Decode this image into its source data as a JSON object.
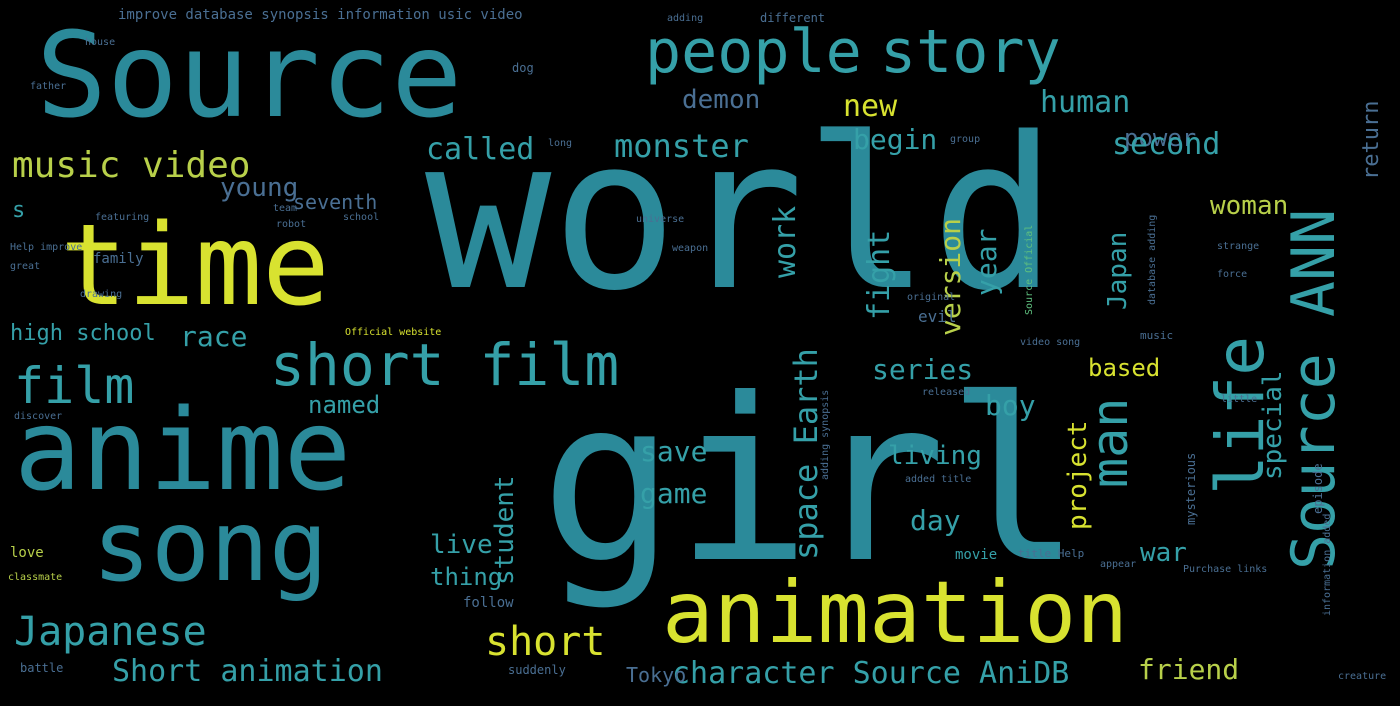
{
  "colors": {
    "background": "#000000",
    "teal": "#2b8a9a",
    "teal_light": "#35a0a8",
    "yellow": "#d8e230",
    "lime": "#b8d04a",
    "green": "#5fc07f",
    "steel": "#4a6f93"
  },
  "words": [
    {
      "text": "world",
      "color": "#2b8a9a",
      "orientation": "horizontal"
    },
    {
      "text": "girl",
      "color": "#2b8a9a",
      "orientation": "horizontal"
    },
    {
      "text": "Source",
      "color": "#2b8a9a",
      "orientation": "horizontal"
    },
    {
      "text": "time",
      "color": "#d8e230",
      "orientation": "horizontal"
    },
    {
      "text": "anime",
      "color": "#2b8a9a",
      "orientation": "horizontal"
    },
    {
      "text": "song",
      "color": "#2b8a9a",
      "orientation": "horizontal"
    },
    {
      "text": "animation",
      "color": "#d8e230",
      "orientation": "horizontal"
    },
    {
      "text": "people",
      "color": "#35a0a8",
      "orientation": "horizontal"
    },
    {
      "text": "story",
      "color": "#35a0a8",
      "orientation": "horizontal"
    },
    {
      "text": "Source ANN",
      "color": "#35a0a8",
      "orientation": "vertical"
    },
    {
      "text": "life",
      "color": "#35a0a8",
      "orientation": "vertical"
    },
    {
      "text": "man",
      "color": "#35a0a8",
      "orientation": "vertical"
    },
    {
      "text": "short film",
      "color": "#35a0a8",
      "orientation": "horizontal"
    },
    {
      "text": "film",
      "color": "#35a0a8",
      "orientation": "horizontal"
    },
    {
      "text": "music video",
      "color": "#b8d04a",
      "orientation": "horizontal"
    },
    {
      "text": "Japanese",
      "color": "#35a0a8",
      "orientation": "horizontal"
    },
    {
      "text": "short",
      "color": "#d8e230",
      "orientation": "horizontal"
    },
    {
      "text": "Short animation",
      "color": "#35a0a8",
      "orientation": "horizontal"
    },
    {
      "text": "character Source AniDB",
      "color": "#35a0a8",
      "orientation": "horizontal"
    },
    {
      "text": "friend",
      "color": "#b8d04a",
      "orientation": "horizontal"
    },
    {
      "text": "Tokyo",
      "color": "#4a6f93",
      "orientation": "horizontal"
    },
    {
      "text": "young",
      "color": "#4a6f93",
      "orientation": "horizontal"
    },
    {
      "text": "seventh",
      "color": "#4a6f93",
      "orientation": "horizontal"
    },
    {
      "text": "s",
      "color": "#35a0a8",
      "orientation": "horizontal"
    },
    {
      "text": "high school",
      "color": "#35a0a8",
      "orientation": "horizontal"
    },
    {
      "text": "race",
      "color": "#35a0a8",
      "orientation": "horizontal"
    },
    {
      "text": "named",
      "color": "#35a0a8",
      "orientation": "horizontal"
    },
    {
      "text": "series",
      "color": "#35a0a8",
      "orientation": "horizontal"
    },
    {
      "text": "boy",
      "color": "#35a0a8",
      "orientation": "horizontal"
    },
    {
      "text": "based",
      "color": "#d8e230",
      "orientation": "horizontal"
    },
    {
      "text": "living",
      "color": "#35a0a8",
      "orientation": "horizontal"
    },
    {
      "text": "save",
      "color": "#35a0a8",
      "orientation": "horizontal"
    },
    {
      "text": "game",
      "color": "#35a0a8",
      "orientation": "horizontal"
    },
    {
      "text": "day",
      "color": "#35a0a8",
      "orientation": "horizontal"
    },
    {
      "text": "live",
      "color": "#35a0a8",
      "orientation": "horizontal"
    },
    {
      "text": "thing",
      "color": "#35a0a8",
      "orientation": "horizontal"
    },
    {
      "text": "war",
      "color": "#35a0a8",
      "orientation": "horizontal"
    },
    {
      "text": "demon",
      "color": "#4a6f93",
      "orientation": "horizontal"
    },
    {
      "text": "new",
      "color": "#d8e230",
      "orientation": "horizontal"
    },
    {
      "text": "human",
      "color": "#35a0a8",
      "orientation": "horizontal"
    },
    {
      "text": "power",
      "color": "#4a6f93",
      "orientation": "horizontal"
    },
    {
      "text": "called",
      "color": "#35a0a8",
      "orientation": "horizontal"
    },
    {
      "text": "monster",
      "color": "#35a0a8",
      "orientation": "horizontal"
    },
    {
      "text": "begin",
      "color": "#35a0a8",
      "orientation": "horizontal"
    },
    {
      "text": "second",
      "color": "#35a0a8",
      "orientation": "horizontal"
    },
    {
      "text": "woman",
      "color": "#b8d04a",
      "orientation": "horizontal"
    },
    {
      "text": "return",
      "color": "#4a6f93",
      "orientation": "vertical"
    },
    {
      "text": "special",
      "color": "#35a0a8",
      "orientation": "vertical"
    },
    {
      "text": "project",
      "color": "#d8e230",
      "orientation": "vertical"
    },
    {
      "text": "Japan",
      "color": "#35a0a8",
      "orientation": "vertical"
    },
    {
      "text": "version",
      "color": "#b8d04a",
      "orientation": "vertical"
    },
    {
      "text": "year",
      "color": "#35a0a8",
      "orientation": "vertical"
    },
    {
      "text": "fight",
      "color": "#35a0a8",
      "orientation": "vertical"
    },
    {
      "text": "work",
      "color": "#35a0a8",
      "orientation": "vertical"
    },
    {
      "text": "space Earth",
      "color": "#35a0a8",
      "orientation": "vertical"
    },
    {
      "text": "student",
      "color": "#35a0a8",
      "orientation": "vertical"
    },
    {
      "text": "improve database synopsis information usic video",
      "color": "#4a6f93",
      "orientation": "horizontal"
    },
    {
      "text": "love",
      "color": "#b8d04a",
      "orientation": "horizontal"
    },
    {
      "text": "family",
      "color": "#4a6f93",
      "orientation": "horizontal"
    },
    {
      "text": "battle",
      "color": "#4a6f93",
      "orientation": "horizontal"
    },
    {
      "text": "suddenly",
      "color": "#4a6f93",
      "orientation": "horizontal"
    },
    {
      "text": "follow",
      "color": "#4a6f93",
      "orientation": "horizontal"
    },
    {
      "text": "movie",
      "color": "#35a0a8",
      "orientation": "horizontal"
    },
    {
      "text": "evil",
      "color": "#4a6f93",
      "orientation": "horizontal"
    },
    {
      "text": "music",
      "color": "#4a6f93",
      "orientation": "horizontal"
    },
    {
      "text": "dog",
      "color": "#4a6f93",
      "orientation": "horizontal"
    },
    {
      "text": "title Help",
      "color": "#4a6f93",
      "orientation": "horizontal"
    },
    {
      "text": "Help improve",
      "color": "#4a6f93",
      "orientation": "horizontal"
    },
    {
      "text": "added title",
      "color": "#4a6f93",
      "orientation": "horizontal"
    },
    {
      "text": "Official website",
      "color": "#d8e230",
      "orientation": "horizontal"
    },
    {
      "text": "video song",
      "color": "#4a6f93",
      "orientation": "horizontal"
    },
    {
      "text": "Purchase links",
      "color": "#4a6f93",
      "orientation": "horizontal"
    },
    {
      "text": "strange",
      "color": "#4a6f93",
      "orientation": "horizontal"
    },
    {
      "text": "released",
      "color": "#4a6f93",
      "orientation": "horizontal"
    },
    {
      "text": "different",
      "color": "#4a6f93",
      "orientation": "horizontal"
    },
    {
      "text": "database adding",
      "color": "#4a6f93",
      "orientation": "vertical"
    },
    {
      "text": "Source Official",
      "color": "#5fc07f",
      "orientation": "vertical"
    },
    {
      "text": "mysterious",
      "color": "#4a6f93",
      "orientation": "vertical"
    },
    {
      "text": "episode",
      "color": "#4a6f93",
      "orientation": "vertical"
    },
    {
      "text": "information added",
      "color": "#4a6f93",
      "orientation": "vertical"
    },
    {
      "text": "adding synopsis",
      "color": "#4a6f93",
      "orientation": "vertical"
    },
    {
      "text": "original",
      "color": "#4a6f93",
      "orientation": "horizontal"
    },
    {
      "text": "great",
      "color": "#4a6f93",
      "orientation": "horizontal"
    },
    {
      "text": "featuring",
      "color": "#4a6f93",
      "orientation": "horizontal"
    },
    {
      "text": "discover",
      "color": "#4a6f93",
      "orientation": "horizontal"
    },
    {
      "text": "robot",
      "color": "#4a6f93",
      "orientation": "horizontal"
    },
    {
      "text": "adding",
      "color": "#4a6f93",
      "orientation": "horizontal"
    },
    {
      "text": "long",
      "color": "#4a6f93",
      "orientation": "horizontal"
    },
    {
      "text": "group",
      "color": "#4a6f93",
      "orientation": "horizontal"
    },
    {
      "text": "little",
      "color": "#4a6f93",
      "orientation": "horizontal"
    },
    {
      "text": "creature",
      "color": "#4a6f93",
      "orientation": "horizontal"
    },
    {
      "text": "classmate",
      "color": "#b8d04a",
      "orientation": "horizontal"
    },
    {
      "text": "appear",
      "color": "#4a6f93",
      "orientation": "horizontal"
    },
    {
      "text": "drawing",
      "color": "#4a6f93",
      "orientation": "horizontal"
    },
    {
      "text": "universe",
      "color": "#4a6f93",
      "orientation": "horizontal"
    },
    {
      "text": "school",
      "color": "#4a6f93",
      "orientation": "horizontal"
    },
    {
      "text": "house",
      "color": "#4a6f93",
      "orientation": "horizontal"
    },
    {
      "text": "father",
      "color": "#4a6f93",
      "orientation": "horizontal"
    },
    {
      "text": "force",
      "color": "#4a6f93",
      "orientation": "horizontal"
    },
    {
      "text": "team",
      "color": "#4a6f93",
      "orientation": "horizontal"
    },
    {
      "text": "weapon",
      "color": "#4a6f93",
      "orientation": "horizontal"
    }
  ]
}
